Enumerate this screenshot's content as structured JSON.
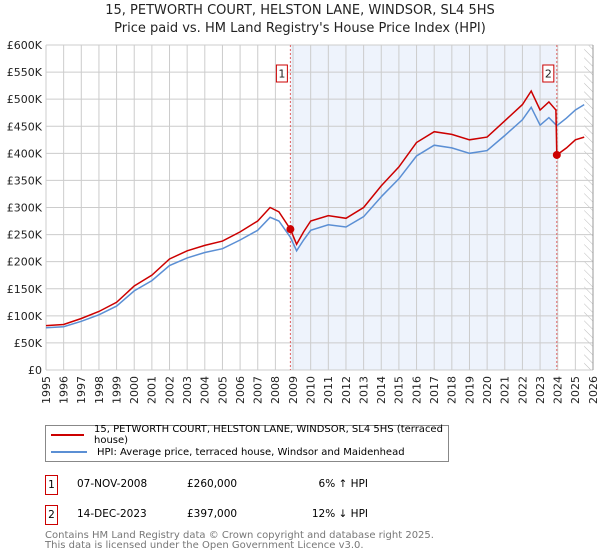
{
  "chart_data": {
    "type": "line",
    "title": "15, PETWORTH COURT, HELSTON LANE, WINDSOR, SL4 5HS",
    "subtitle": "Price paid vs. HM Land Registry's House Price Index (HPI)",
    "xlim": [
      1995,
      2026
    ],
    "ylim": [
      0,
      600000
    ],
    "yticks": [
      0,
      50000,
      100000,
      150000,
      200000,
      250000,
      300000,
      350000,
      400000,
      450000,
      500000,
      550000,
      600000
    ],
    "ytick_labels": [
      "£0",
      "£50K",
      "£100K",
      "£150K",
      "£200K",
      "£250K",
      "£300K",
      "£350K",
      "£400K",
      "£450K",
      "£500K",
      "£550K",
      "£600K"
    ],
    "xticks": [
      "1995",
      "1996",
      "1997",
      "1998",
      "1999",
      "2000",
      "2001",
      "2002",
      "2003",
      "2004",
      "2005",
      "2006",
      "2007",
      "2008",
      "2009",
      "2010",
      "2011",
      "2012",
      "2013",
      "2014",
      "2015",
      "2016",
      "2017",
      "2018",
      "2019",
      "2020",
      "2021",
      "2022",
      "2023",
      "2024",
      "2025",
      "2026"
    ],
    "grid": true,
    "series": [
      {
        "name": "15, PETWORTH COURT, HELSTON LANE, WINDSOR, SL4 5HS (terraced house)",
        "color": "#cc0000",
        "x": [
          1995,
          1996,
          1997,
          1998,
          1999,
          2000,
          2001,
          2002,
          2003,
          2004,
          2005,
          2006,
          2007,
          2007.7,
          2008.2,
          2008.85,
          2009.2,
          2009.6,
          2010,
          2011,
          2012,
          2013,
          2014,
          2015,
          2016,
          2017,
          2018,
          2019,
          2020,
          2021,
          2022,
          2022.5,
          2023,
          2023.5,
          2023.9,
          2023.95,
          2024.5,
          2025,
          2025.5
        ],
        "y": [
          82000,
          84000,
          95000,
          108000,
          125000,
          155000,
          175000,
          205000,
          220000,
          230000,
          238000,
          255000,
          275000,
          300000,
          292000,
          260000,
          232000,
          255000,
          275000,
          285000,
          280000,
          300000,
          340000,
          375000,
          420000,
          440000,
          435000,
          425000,
          430000,
          460000,
          490000,
          515000,
          480000,
          495000,
          480000,
          397000,
          410000,
          425000,
          430000
        ]
      },
      {
        "name": "HPI: Average price, terraced house, Windsor and Maidenhead",
        "color": "#5b8fd4",
        "x": [
          1995,
          1996,
          1997,
          1998,
          1999,
          2000,
          2001,
          2002,
          2003,
          2004,
          2005,
          2006,
          2007,
          2007.7,
          2008.2,
          2008.85,
          2009.2,
          2009.6,
          2010,
          2011,
          2012,
          2013,
          2014,
          2015,
          2016,
          2017,
          2018,
          2019,
          2020,
          2021,
          2022,
          2022.5,
          2023,
          2023.5,
          2023.95,
          2024.5,
          2025,
          2025.5
        ],
        "y": [
          78000,
          80000,
          90000,
          102000,
          118000,
          146000,
          165000,
          193000,
          207000,
          217000,
          224000,
          240000,
          258000,
          282000,
          275000,
          245000,
          220000,
          240000,
          258000,
          268000,
          264000,
          283000,
          320000,
          353000,
          395000,
          415000,
          410000,
          400000,
          405000,
          433000,
          462000,
          485000,
          452000,
          466000,
          451000,
          465000,
          480000,
          490000
        ]
      }
    ],
    "sales": [
      {
        "label": "1",
        "date": "07-NOV-2008",
        "x": 2008.85,
        "price": "£260,000",
        "value": 260000,
        "hpi": "6% ↑ HPI"
      },
      {
        "label": "2",
        "date": "14-DEC-2023",
        "x": 2023.95,
        "price": "£397,000",
        "value": 397000,
        "hpi": "12% ↓ HPI"
      }
    ],
    "forecast_from": 2025.5
  },
  "footer": {
    "line1": "Contains HM Land Registry data © Crown copyright and database right 2025.",
    "line2": "This data is licensed under the Open Government Licence v3.0."
  }
}
